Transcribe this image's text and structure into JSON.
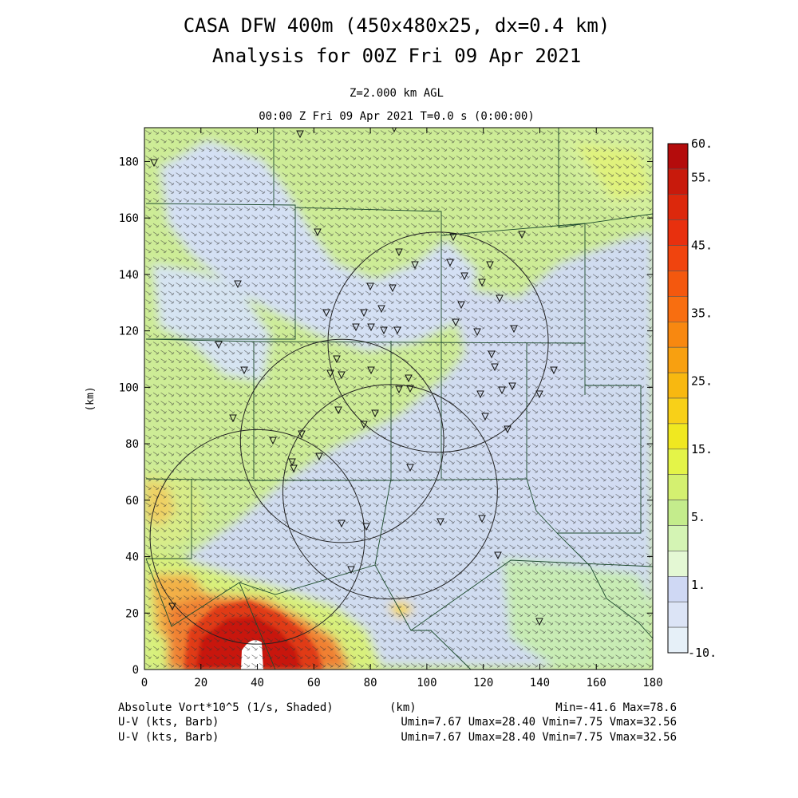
{
  "title_line1": "CASA DFW 400m (450x480x25, dx=0.4 km)",
  "title_line2": "Analysis for 00Z Fri 09 Apr 2021",
  "level_label": "Z=2.000 km AGL",
  "time_label": "00:00 Z Fri 09 Apr 2021    T=0.0 s (0:00:00)",
  "footer": {
    "field_label": "Absolute Vort*10^5 (1/s, Shaded)",
    "xunit": "(km)",
    "minmax": "Min=-41.6 Max=78.6",
    "barb_label_1": "U-V (kts, Barb)",
    "barb_stats_1": "Umin=7.67 Umax=28.40  Vmin=7.75 Vmax=32.56",
    "barb_label_2": "U-V (kts, Barb)",
    "barb_stats_2": "Umin=7.67 Umax=28.40  Vmin=7.75 Vmax=32.56"
  },
  "colors": {
    "pale_blue": "#dcf0f8",
    "light_blue": "#cfd8f2",
    "light_green": "#dcf4c4",
    "green": "#c4ec8a",
    "yellow_green": "#e4f44c",
    "orange": "#f0a030",
    "red": "#d82010",
    "dark_red": "#b00c0c"
  },
  "chart_data": {
    "type": "heatmap",
    "xlabel": "",
    "ylabel": "(km)",
    "xlim": [
      0,
      180
    ],
    "ylim": [
      0,
      192
    ],
    "xticks": [
      0,
      20,
      40,
      60,
      80,
      100,
      120,
      140,
      160,
      180
    ],
    "yticks": [
      0,
      20,
      40,
      60,
      80,
      100,
      120,
      140,
      160,
      180
    ],
    "colorbar": {
      "labels": [
        "60.",
        "55.",
        "45.",
        "35.",
        "25.",
        "15.",
        "5.",
        "1.",
        "-10."
      ],
      "colors": [
        "#b40c0c",
        "#c81a0c",
        "#dc280c",
        "#e8300e",
        "#f0440e",
        "#f4580e",
        "#f86e10",
        "#f88810",
        "#f8a010",
        "#f8b810",
        "#f8d018",
        "#f0e820",
        "#e4f448",
        "#d4f070",
        "#c4ec8c",
        "#d4f4b4",
        "#e4f8d4",
        "#cfd8f4",
        "#dce4f6",
        "#e6f0f8"
      ]
    },
    "radar_rings": [
      {
        "cx": 40,
        "cy": 47,
        "r": 38
      },
      {
        "cx": 70,
        "cy": 81,
        "r": 36
      },
      {
        "cx": 87,
        "cy": 63,
        "r": 38
      },
      {
        "cx": 104,
        "cy": 116,
        "r": 39
      }
    ]
  }
}
